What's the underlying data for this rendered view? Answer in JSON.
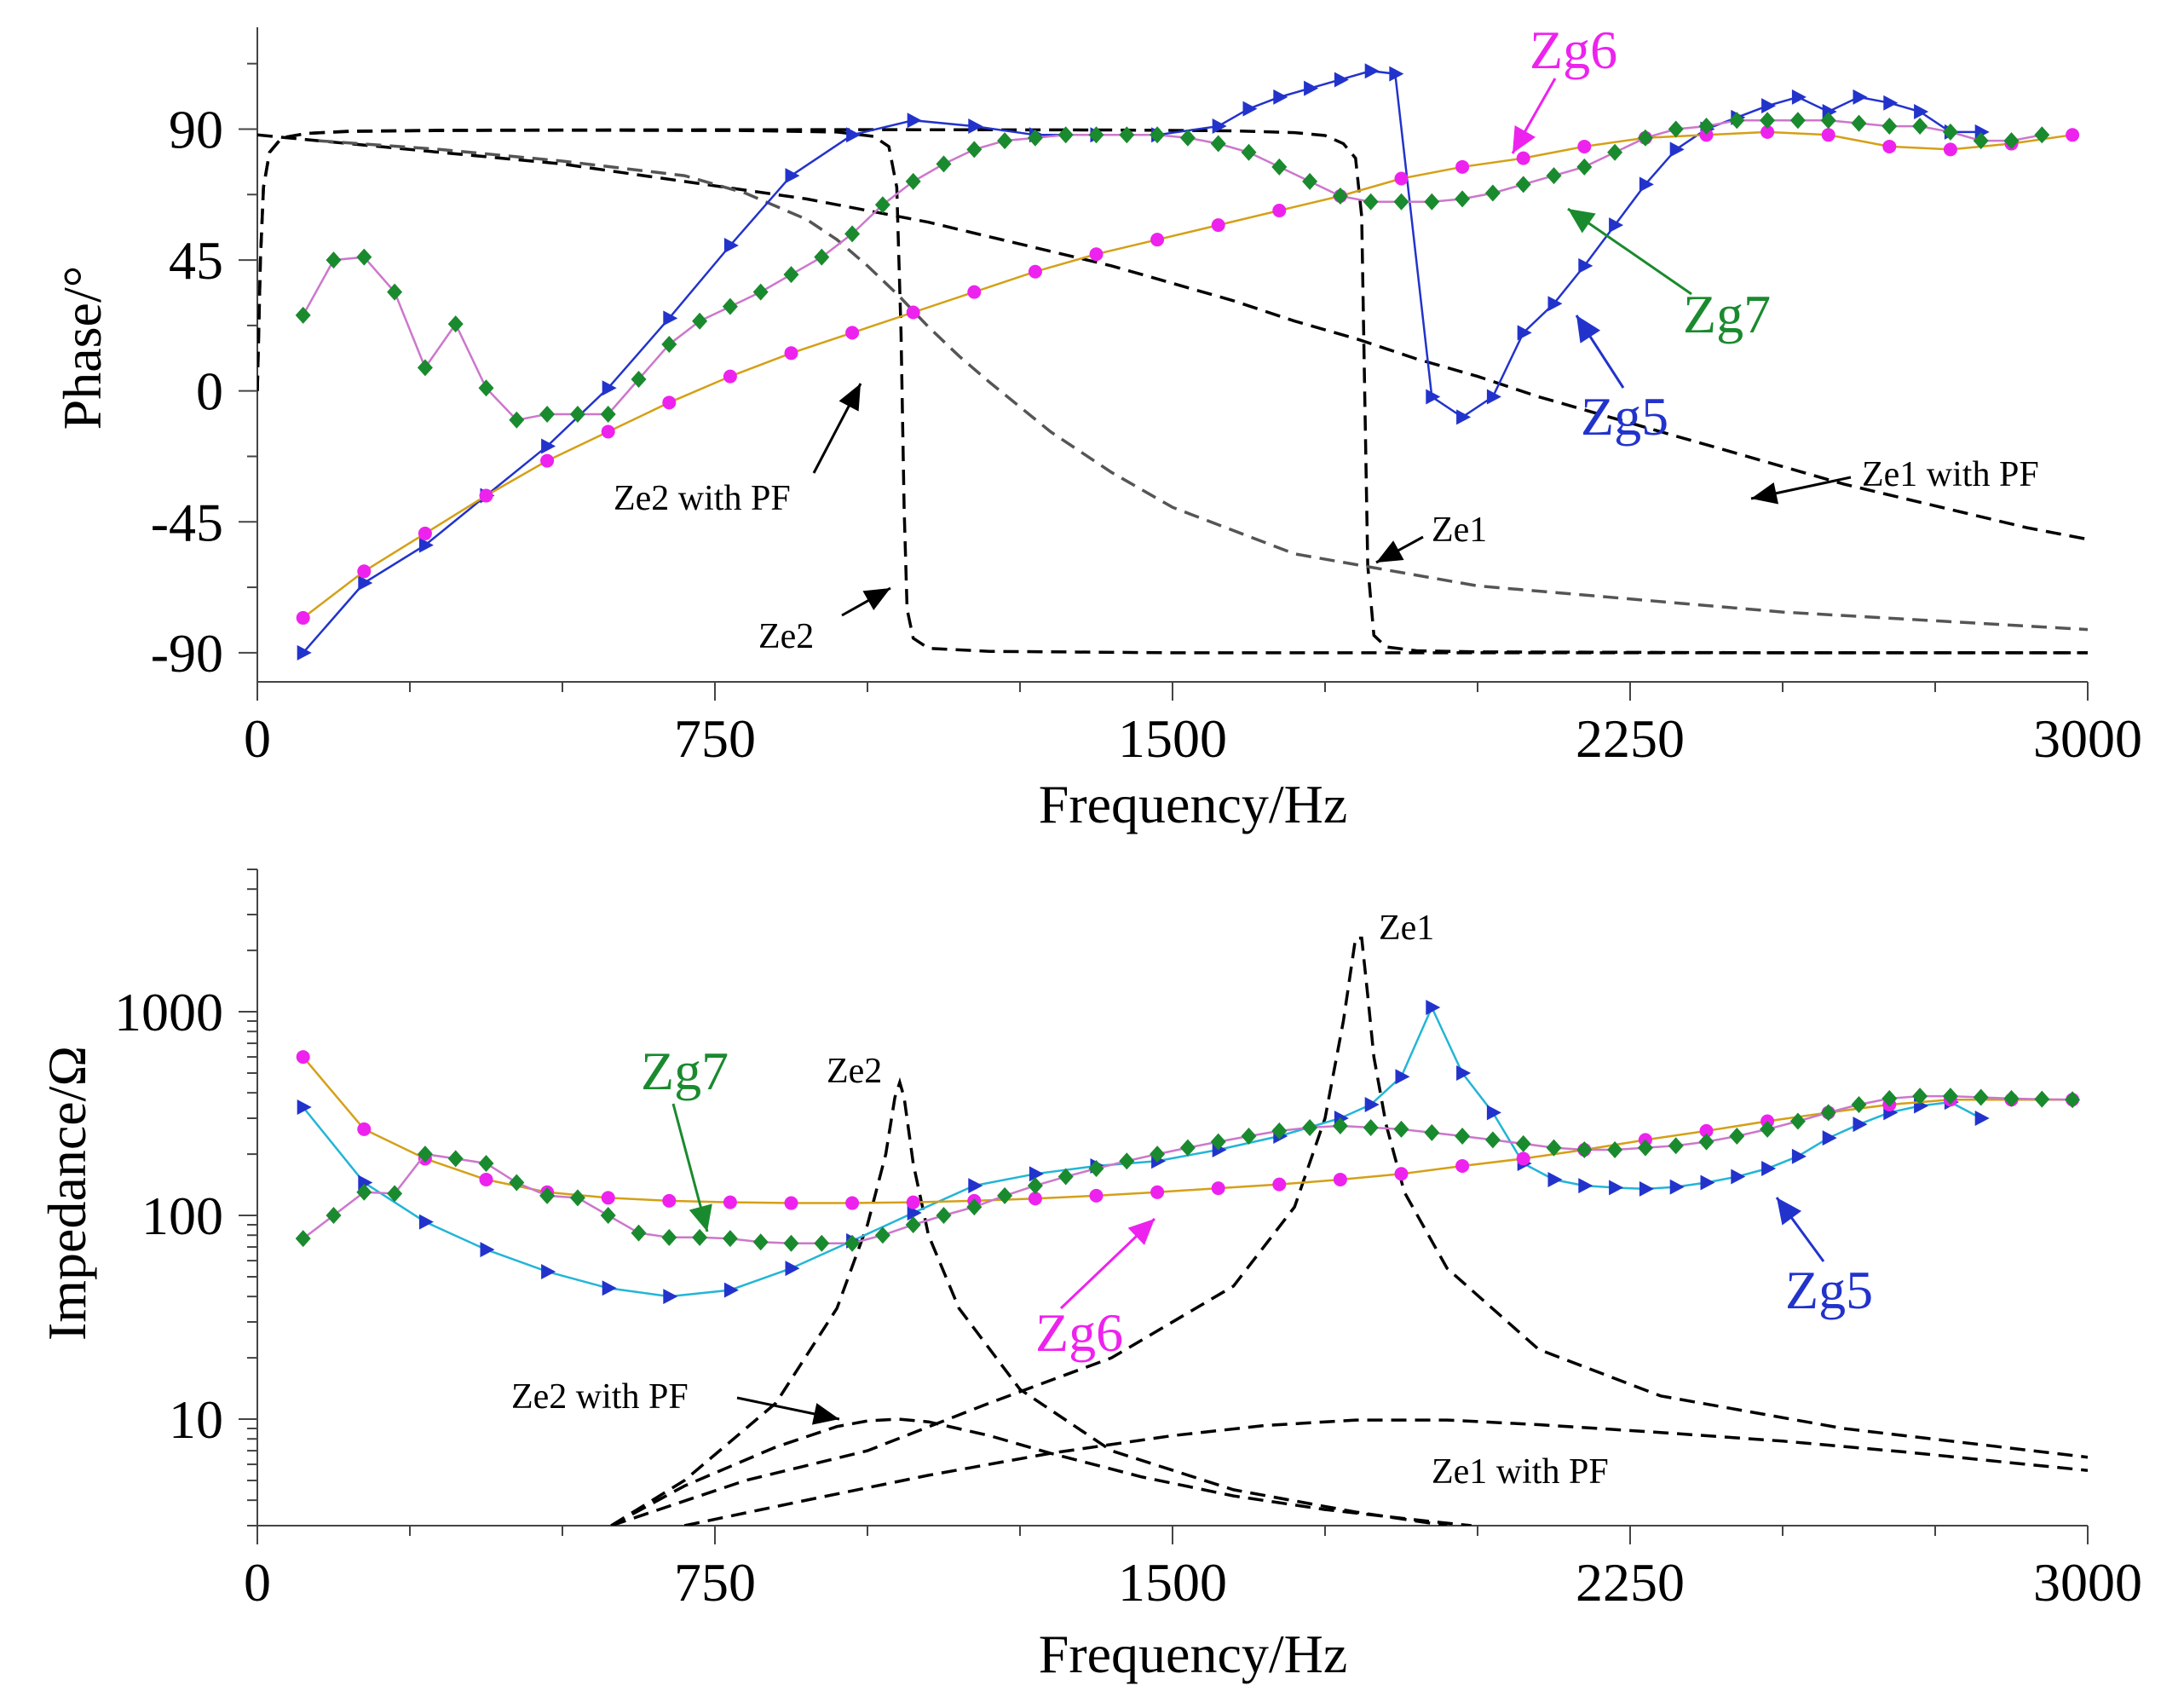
{
  "chart_data": [
    {
      "type": "line",
      "title": "",
      "xlabel": "Frequency/Hz",
      "ylabel": "Phase/°",
      "xlim": [
        0,
        3000
      ],
      "ylim": [
        -100,
        125
      ],
      "xticks": [
        "0",
        "750",
        "1500",
        "2250",
        "3000"
      ],
      "yticks": [
        "90",
        "45",
        "0",
        "-45",
        "-90"
      ],
      "series": [
        {
          "name": "Zg5",
          "color": "#2233cc",
          "line_color": "#2233cc",
          "marker": "triangle-right",
          "label_color": "#2233cc",
          "x": [
            75,
            175,
            275,
            375,
            475,
            575,
            675,
            775,
            875,
            975,
            1075,
            1175,
            1275,
            1375,
            1475,
            1575,
            1625,
            1675,
            1725,
            1775,
            1825,
            1865,
            1925,
            1975,
            2025,
            2075,
            2125,
            2175,
            2225,
            2275,
            2325,
            2375,
            2425,
            2475,
            2525,
            2575,
            2625,
            2675,
            2725,
            2775,
            2825
          ],
          "y": [
            -90,
            -66,
            -53,
            -36,
            -19,
            1,
            25,
            50,
            74,
            88,
            93,
            91,
            88,
            88,
            88,
            91,
            97,
            101,
            104,
            107,
            110,
            109,
            -2,
            -9,
            -2,
            20,
            30,
            43,
            57,
            71,
            83,
            90,
            94,
            98,
            101,
            96,
            101,
            99,
            96,
            89,
            89
          ]
        },
        {
          "name": "Zg6",
          "color": "#ee22ee",
          "line_color": "#d4a017",
          "marker": "circle",
          "label_color": "#ee22ee",
          "x": [
            75,
            175,
            275,
            375,
            475,
            575,
            675,
            775,
            875,
            975,
            1075,
            1175,
            1275,
            1375,
            1475,
            1575,
            1675,
            1775,
            1875,
            1975,
            2075,
            2175,
            2275,
            2375,
            2475,
            2575,
            2675,
            2775,
            2875,
            2975
          ],
          "y": [
            -78,
            -62,
            -49,
            -36,
            -24,
            -14,
            -4,
            5,
            13,
            20,
            27,
            34,
            41,
            47,
            52,
            57,
            62,
            67,
            73,
            77,
            80,
            84,
            87,
            88,
            89,
            88,
            84,
            83,
            85,
            88
          ]
        },
        {
          "name": "Zg7",
          "color": "#1a8a2e",
          "line_color": "#cc77cc",
          "marker": "diamond",
          "label_color": "#1a8a2e",
          "x": [
            75,
            125,
            175,
            225,
            275,
            325,
            375,
            425,
            475,
            525,
            575,
            625,
            675,
            725,
            775,
            825,
            875,
            925,
            975,
            1025,
            1075,
            1125,
            1175,
            1225,
            1275,
            1325,
            1375,
            1425,
            1475,
            1525,
            1575,
            1625,
            1675,
            1725,
            1775,
            1825,
            1875,
            1925,
            1975,
            2025,
            2075,
            2125,
            2175,
            2225,
            2275,
            2325,
            2375,
            2425,
            2475,
            2525,
            2575,
            2625,
            2675,
            2725,
            2775,
            2825,
            2875,
            2925
          ],
          "y": [
            26,
            45,
            46,
            34,
            8,
            23,
            1,
            -10,
            -8,
            -8,
            -8,
            4,
            16,
            24,
            29,
            34,
            40,
            46,
            54,
            64,
            72,
            78,
            83,
            86,
            87,
            88,
            88,
            88,
            88,
            87,
            85,
            82,
            77,
            72,
            67,
            65,
            65,
            65,
            66,
            68,
            71,
            74,
            77,
            82,
            87,
            90,
            91,
            93,
            93,
            93,
            93,
            92,
            91,
            91,
            89,
            86,
            86,
            88
          ]
        },
        {
          "name": "Ze1",
          "color": "#000000",
          "dash": "dashed",
          "marker": "none",
          "x": [
            0,
            5,
            10,
            20,
            40,
            80,
            150,
            300,
            500,
            1000,
            1400,
            1600,
            1700,
            1750,
            1780,
            1800,
            1810,
            1815,
            1820,
            1830,
            1850,
            1900,
            2000,
            2500,
            3000
          ],
          "y": [
            0,
            45,
            70,
            82,
            87,
            88.5,
            89.3,
            89.6,
            89.7,
            89.8,
            89.7,
            89.4,
            88.8,
            87.8,
            85,
            80,
            60,
            0,
            -60,
            -84,
            -88,
            -89.3,
            -89.7,
            -90,
            -90
          ]
        },
        {
          "name": "Ze2",
          "color": "#000000",
          "dash": "dashed",
          "marker": "none",
          "x": [
            0,
            5,
            10,
            20,
            40,
            80,
            150,
            300,
            500,
            800,
            950,
            1010,
            1035,
            1048,
            1055,
            1060,
            1065,
            1075,
            1100,
            1200,
            1500,
            2000,
            3000
          ],
          "y": [
            0,
            45,
            70,
            82,
            87,
            88.5,
            89.2,
            89.5,
            89.6,
            89.5,
            89.0,
            87.5,
            84,
            70,
            20,
            -40,
            -75,
            -85,
            -88.5,
            -89.5,
            -90,
            -90,
            -90
          ]
        },
        {
          "name": "Ze1 with PF",
          "color": "#000000",
          "dash": "dashed",
          "marker": "none",
          "x": [
            0,
            100,
            200,
            300,
            400,
            500,
            600,
            700,
            800,
            900,
            1000,
            1100,
            1200,
            1300,
            1400,
            1500,
            1600,
            1700,
            1800,
            1900,
            2000,
            2100,
            2200,
            2300,
            2400,
            2500,
            2600,
            2700,
            2800,
            2900,
            3000
          ],
          "y": [
            88,
            86,
            84,
            82,
            80,
            78,
            75,
            72,
            69,
            66,
            62,
            58,
            53,
            48,
            43,
            37,
            31,
            24,
            18,
            11,
            5,
            -2,
            -8,
            -14,
            -20,
            -26,
            -32,
            -37,
            -42,
            -47,
            -51
          ]
        },
        {
          "name": "Ze2 with PF",
          "color": "#555555",
          "dash": "dashed",
          "marker": "none",
          "x": [
            100,
            300,
            500,
            700,
            800,
            900,
            950,
            1000,
            1050,
            1100,
            1150,
            1200,
            1300,
            1400,
            1500,
            1700,
            2000,
            2500,
            3000
          ],
          "y": [
            86,
            83,
            79,
            74,
            68,
            59,
            52,
            43,
            33,
            22,
            12,
            3,
            -14,
            -28,
            -40,
            -56,
            -67,
            -76,
            -82
          ]
        }
      ],
      "annotations": [
        "Ze2 with PF",
        "Ze2",
        "Ze1",
        "Ze1 with PF",
        "Zg6",
        "Zg7",
        "Zg5"
      ]
    },
    {
      "type": "line",
      "title": "",
      "xlabel": "Frequency/Hz",
      "ylabel": "Impedance/Ω",
      "y_scale": "log",
      "xlim": [
        0,
        3000
      ],
      "ylim": [
        3,
        5000
      ],
      "xticks": [
        "0",
        "750",
        "1500",
        "2250",
        "3000"
      ],
      "yticks": [
        "1000",
        "100",
        "10"
      ],
      "series": [
        {
          "name": "Zg5",
          "color": "#2233cc",
          "line_color": "#22b5d6",
          "marker": "triangle-right",
          "label_color": "#2233cc",
          "x": [
            75,
            175,
            275,
            375,
            475,
            575,
            675,
            775,
            875,
            975,
            1075,
            1175,
            1275,
            1375,
            1475,
            1575,
            1675,
            1775,
            1825,
            1875,
            1925,
            1975,
            2025,
            2075,
            2125,
            2175,
            2225,
            2275,
            2325,
            2375,
            2425,
            2475,
            2525,
            2575,
            2625,
            2675,
            2725,
            2775,
            2825
          ],
          "y": [
            340,
            145,
            93,
            68,
            53,
            44,
            40,
            43,
            55,
            75,
            103,
            140,
            160,
            175,
            185,
            210,
            245,
            300,
            350,
            480,
            1050,
            500,
            320,
            180,
            150,
            140,
            137,
            135,
            138,
            145,
            155,
            170,
            195,
            240,
            280,
            320,
            345,
            360,
            300
          ]
        },
        {
          "name": "Zg6",
          "color": "#ee22ee",
          "line_color": "#d4a017",
          "marker": "circle",
          "label_color": "#ee22ee",
          "x": [
            75,
            175,
            275,
            375,
            475,
            575,
            675,
            775,
            875,
            975,
            1075,
            1175,
            1275,
            1375,
            1475,
            1575,
            1675,
            1775,
            1875,
            1975,
            2075,
            2175,
            2275,
            2375,
            2475,
            2575,
            2675,
            2775,
            2875,
            2975
          ],
          "y": [
            600,
            265,
            190,
            150,
            130,
            122,
            118,
            116,
            115,
            115,
            116,
            118,
            121,
            125,
            130,
            136,
            142,
            150,
            160,
            175,
            190,
            210,
            235,
            260,
            290,
            320,
            350,
            370,
            370,
            370
          ]
        },
        {
          "name": "Zg7",
          "color": "#1a8a2e",
          "line_color": "#cc77cc",
          "marker": "diamond",
          "label_color": "#1a8a2e",
          "x": [
            75,
            125,
            175,
            225,
            275,
            325,
            375,
            425,
            475,
            525,
            575,
            625,
            675,
            725,
            775,
            825,
            875,
            925,
            975,
            1025,
            1075,
            1125,
            1175,
            1225,
            1275,
            1325,
            1375,
            1425,
            1475,
            1525,
            1575,
            1625,
            1675,
            1725,
            1775,
            1825,
            1875,
            1925,
            1975,
            2025,
            2075,
            2125,
            2175,
            2225,
            2275,
            2325,
            2375,
            2425,
            2475,
            2525,
            2575,
            2625,
            2675,
            2725,
            2775,
            2825,
            2875,
            2925,
            2975
          ],
          "y": [
            77,
            100,
            130,
            128,
            200,
            190,
            180,
            145,
            125,
            122,
            100,
            82,
            78,
            78,
            77,
            74,
            73,
            73,
            73,
            80,
            90,
            100,
            110,
            125,
            140,
            155,
            170,
            185,
            200,
            215,
            230,
            245,
            260,
            270,
            275,
            270,
            265,
            255,
            245,
            235,
            225,
            215,
            210,
            210,
            215,
            220,
            230,
            245,
            265,
            290,
            320,
            350,
            375,
            385,
            385,
            380,
            375,
            372,
            370
          ]
        },
        {
          "name": "Ze1",
          "color": "#000000",
          "dash": "dashed",
          "marker": "none",
          "x": [
            580,
            800,
            1000,
            1200,
            1400,
            1600,
            1700,
            1750,
            1780,
            1800,
            1810,
            1820,
            1830,
            1850,
            1880,
            1950,
            2100,
            2300,
            2600,
            3000
          ],
          "y": [
            3,
            5,
            7,
            12,
            20,
            45,
            110,
            300,
            900,
            2300,
            2300,
            1200,
            600,
            280,
            130,
            55,
            22,
            13,
            9,
            6.5
          ]
        },
        {
          "name": "Ze2",
          "color": "#000000",
          "dash": "dashed",
          "marker": "none",
          "x": [
            580,
            700,
            850,
            950,
            1000,
            1030,
            1045,
            1053,
            1060,
            1075,
            1100,
            1150,
            1250,
            1400,
            1600,
            1800,
            1950
          ],
          "y": [
            3,
            5,
            12,
            35,
            90,
            200,
            380,
            450,
            380,
            180,
            80,
            35,
            14,
            7,
            4.5,
            3.5,
            3
          ]
        },
        {
          "name": "Ze1 with PF",
          "color": "#000000",
          "dash": "dashed",
          "marker": "none",
          "x": [
            700,
            900,
            1100,
            1300,
            1500,
            1650,
            1800,
            1950,
            2100,
            2300,
            2500,
            2700,
            2900,
            3000
          ],
          "y": [
            3,
            4,
            5.3,
            6.8,
            8.3,
            9.3,
            9.9,
            9.9,
            9.4,
            8.6,
            7.8,
            6.9,
            6.0,
            5.6
          ]
        },
        {
          "name": "Ze2 with PF",
          "color": "#000000",
          "dash": "dashed",
          "marker": "none",
          "x": [
            580,
            700,
            850,
            950,
            1000,
            1050,
            1100,
            1200,
            1300,
            1450,
            1600,
            1750,
            1900,
            1990
          ],
          "y": [
            3,
            4.7,
            7.3,
            9.2,
            9.8,
            10,
            9.7,
            8.3,
            6.8,
            5.2,
            4.2,
            3.6,
            3.2,
            3
          ]
        }
      ],
      "annotations": [
        "Ze1",
        "Ze2",
        "Zg7",
        "Ze2 with PF",
        "Zg6",
        "Ze1 with PF",
        "Zg5"
      ]
    }
  ]
}
